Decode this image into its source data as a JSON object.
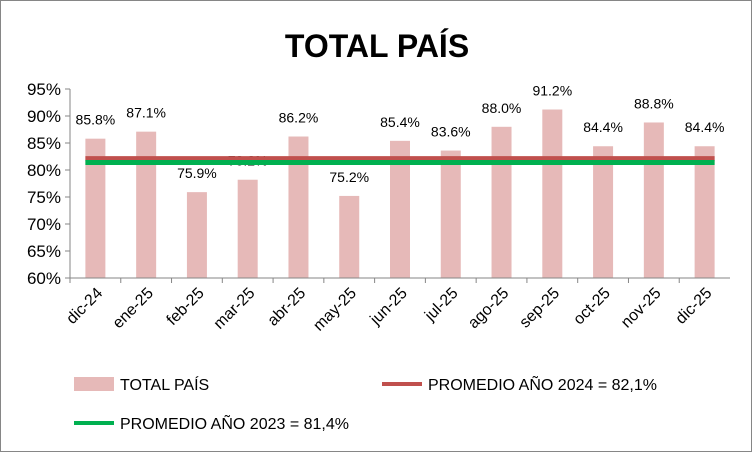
{
  "chart_data": {
    "type": "bar",
    "title": "TOTAL PAÍS",
    "categories": [
      "dic-24",
      "ene-25",
      "feb-25",
      "mar-25",
      "abr-25",
      "may-25",
      "jun-25",
      "jul-25",
      "ago-25",
      "sep-25",
      "oct-25",
      "nov-25",
      "dic-25"
    ],
    "series": [
      {
        "name": "TOTAL PAÍS",
        "type": "bar",
        "color": "#E6B9B8",
        "values": [
          85.8,
          87.1,
          75.9,
          78.2,
          86.2,
          75.2,
          85.4,
          83.6,
          88.0,
          91.2,
          84.4,
          88.8,
          84.4
        ],
        "labels": [
          "85.8%",
          "87.1%",
          "75.9%",
          "78.2%",
          "86.2%",
          "75.2%",
          "85.4%",
          "83.6%",
          "88.0%",
          "91.2%",
          "84.4%",
          "88.8%",
          "84.4%"
        ]
      },
      {
        "name": "PROMEDIO AÑO 2024 = 82,1%",
        "type": "line",
        "color": "#C0504D",
        "value": 82.1
      },
      {
        "name": "PROMEDIO AÑO 2023 = 81,4%",
        "type": "line",
        "color": "#00B050",
        "value": 81.4
      }
    ],
    "ylim": [
      60,
      95
    ],
    "yticks": [
      "60%",
      "65%",
      "70%",
      "75%",
      "80%",
      "85%",
      "90%",
      "95%"
    ],
    "ytick_values": [
      60,
      65,
      70,
      75,
      80,
      85,
      90,
      95
    ],
    "xlabel": "",
    "ylabel": "",
    "grid": false,
    "legend": "bottom"
  }
}
